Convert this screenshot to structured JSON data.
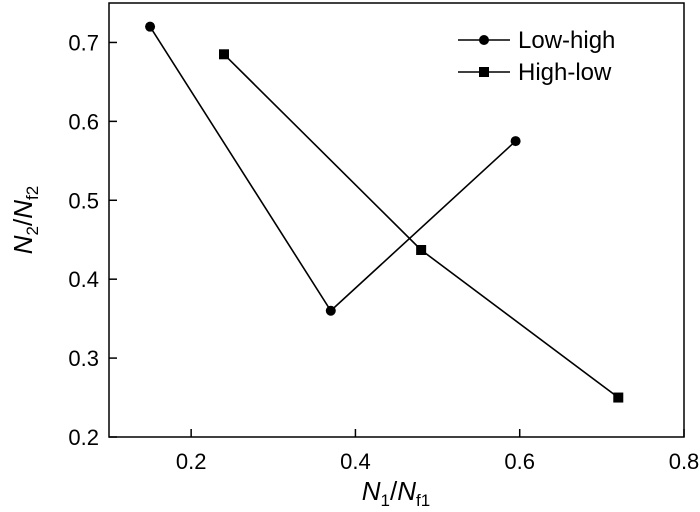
{
  "chart_data": {
    "type": "line",
    "xlabel": {
      "main": "N",
      "sub1": "1",
      "sep": "/",
      "main2": "N",
      "sub2": "f1"
    },
    "ylabel": {
      "main": "N",
      "sub1": "2",
      "sep": "/",
      "main2": "N",
      "sub2": "f2"
    },
    "xlim": [
      0.1,
      0.8
    ],
    "ylim": [
      0.2,
      0.75
    ],
    "xticks": [
      0.2,
      0.4,
      0.6,
      0.8
    ],
    "xtick_labels": [
      "0.2",
      "0.4",
      "0.6",
      "0.8"
    ],
    "yticks": [
      0.2,
      0.3,
      0.4,
      0.5,
      0.6,
      0.7
    ],
    "ytick_labels": [
      "0.2",
      "0.3",
      "0.4",
      "0.5",
      "0.6",
      "0.7"
    ],
    "grid": false,
    "legend_position": "top-right",
    "series": [
      {
        "name": "Low-high",
        "marker": "circle",
        "color": "#000000",
        "x": [
          0.15,
          0.37,
          0.595
        ],
        "y": [
          0.72,
          0.36,
          0.575
        ]
      },
      {
        "name": "High-low",
        "marker": "square",
        "color": "#000000",
        "x": [
          0.24,
          0.48,
          0.72
        ],
        "y": [
          0.685,
          0.437,
          0.25
        ]
      }
    ]
  }
}
